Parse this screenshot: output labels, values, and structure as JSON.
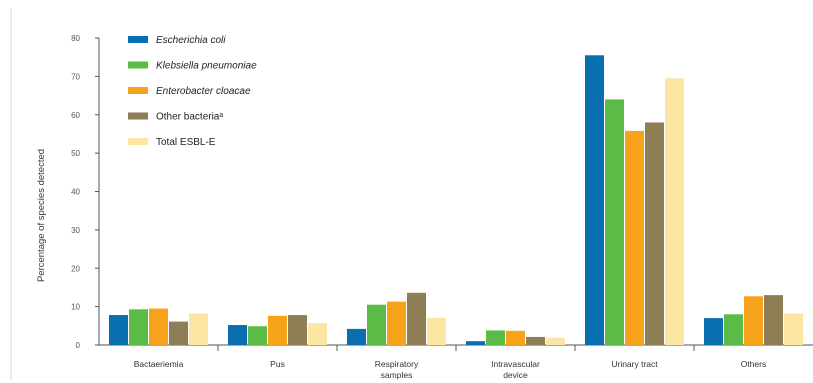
{
  "chart_data": {
    "type": "bar",
    "ylabel": "Percentage of species detected",
    "ylim": [
      0,
      80
    ],
    "yticks": [
      0,
      10,
      20,
      30,
      40,
      50,
      60,
      70,
      80
    ],
    "categories": [
      [
        "Bactaeriemia"
      ],
      [
        "Pus"
      ],
      [
        "Respiratory",
        "samples"
      ],
      [
        "Intravascular",
        "device"
      ],
      [
        "Urinary tract"
      ],
      [
        "Others"
      ]
    ],
    "series": [
      {
        "name": "Escherichia coli",
        "italic": true,
        "color": "#0a6fb0",
        "values": [
          7.8,
          5.2,
          4.2,
          1.0,
          75.5,
          7.0
        ]
      },
      {
        "name": "Klebsiella pneumoniae",
        "italic": true,
        "color": "#5cba47",
        "values": [
          9.3,
          4.9,
          10.5,
          3.8,
          64.0,
          8.0
        ]
      },
      {
        "name": "Enterobacter cloacae",
        "italic": true,
        "color": "#f7a21b",
        "values": [
          9.5,
          7.6,
          11.3,
          3.7,
          55.8,
          12.7
        ]
      },
      {
        "name": "Other bacteriaᵃ",
        "italic": false,
        "color": "#8e7e55",
        "values": [
          6.1,
          7.8,
          13.6,
          2.1,
          58.0,
          13.0
        ]
      },
      {
        "name": "Total ESBL-E",
        "italic": false,
        "color": "#fbe7a3",
        "values": [
          8.2,
          5.7,
          7.1,
          1.9,
          69.5,
          8.2
        ]
      }
    ],
    "grid": false,
    "legend": "top-left"
  }
}
